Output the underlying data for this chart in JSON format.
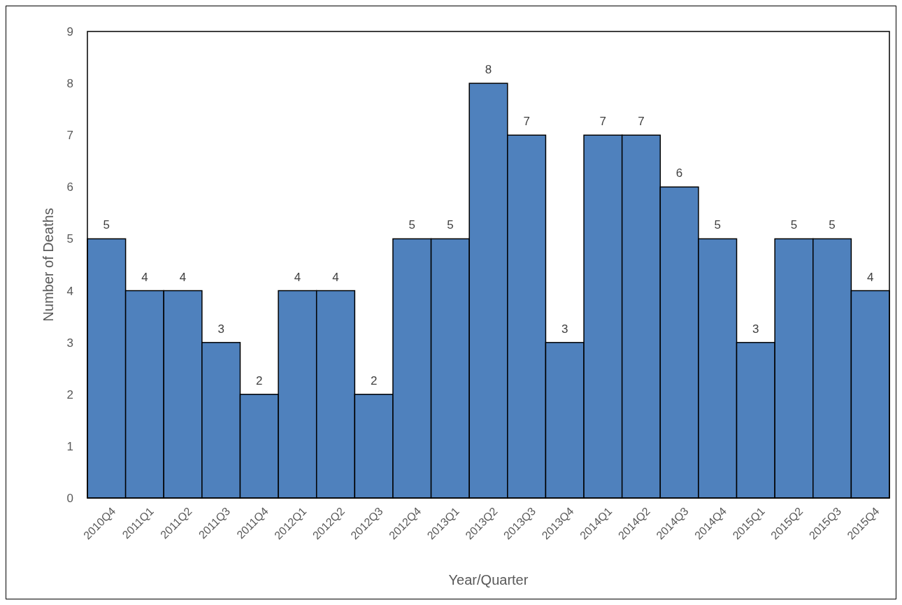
{
  "chart_data": {
    "type": "bar",
    "xlabel": "Year/Quarter",
    "ylabel": "Number of Deaths",
    "categories": [
      "2010Q4",
      "2011Q1",
      "2011Q2",
      "2011Q3",
      "2011Q4",
      "2012Q1",
      "2012Q2",
      "2012Q3",
      "2012Q4",
      "2013Q1",
      "2013Q2",
      "2013Q3",
      "2013Q4",
      "2014Q1",
      "2014Q2",
      "2014Q3",
      "2014Q4",
      "2015Q1",
      "2015Q2",
      "2015Q3",
      "2015Q4"
    ],
    "values": [
      5,
      4,
      4,
      3,
      2,
      4,
      4,
      2,
      5,
      5,
      8,
      7,
      3,
      7,
      7,
      6,
      5,
      3,
      5,
      5,
      4
    ],
    "color": "#4f81bd",
    "ylim": [
      0,
      9
    ],
    "yticks": [
      0,
      1,
      2,
      3,
      4,
      5,
      6,
      7,
      8,
      9
    ],
    "data_labels": true,
    "grid": false
  }
}
